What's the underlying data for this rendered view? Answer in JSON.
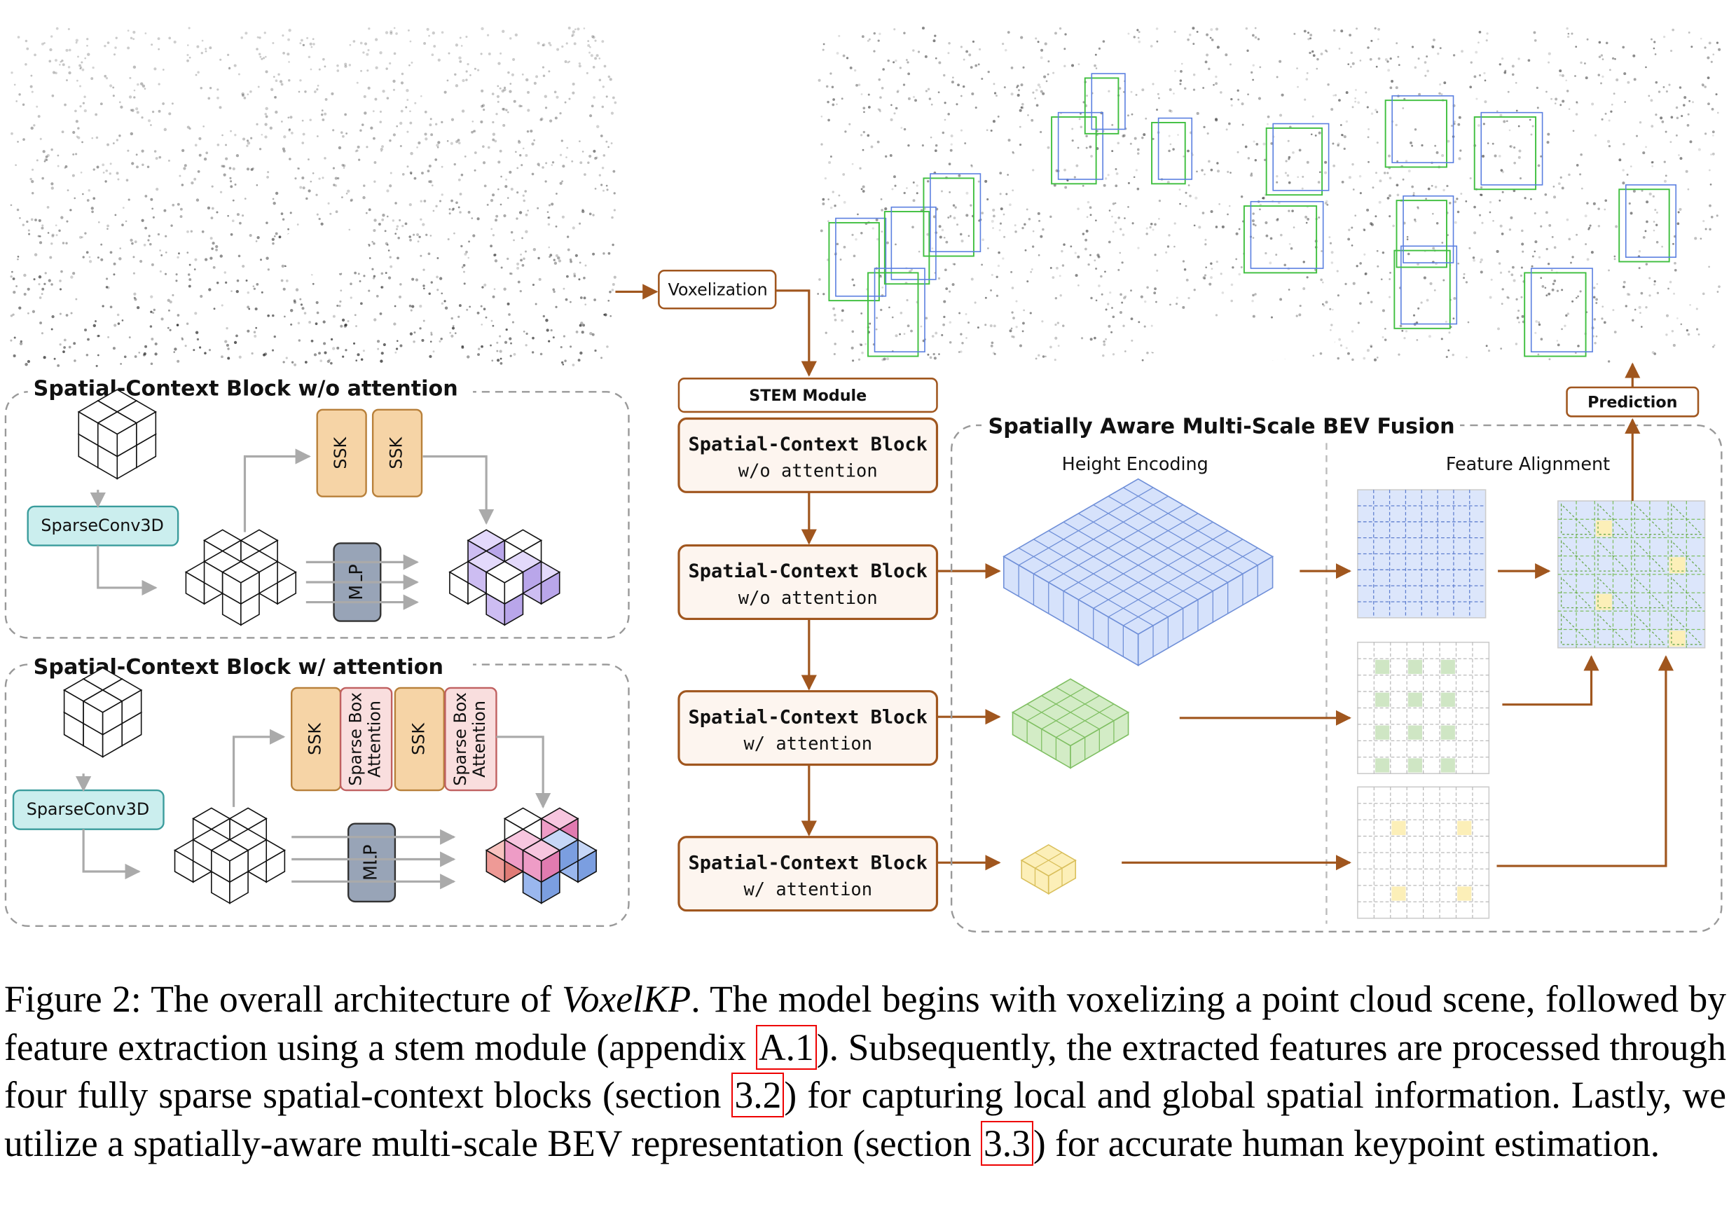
{
  "figure": {
    "voxelization": "Voxelization",
    "stem": "STEM Module",
    "blocks": [
      {
        "title": "Spatial-Context Block",
        "subtitle": "w/o attention"
      },
      {
        "title": "Spatial-Context Block",
        "subtitle": "w/o attention"
      },
      {
        "title": "Spatial-Context Block",
        "subtitle": "w/ attention"
      },
      {
        "title": "Spatial-Context Block",
        "subtitle": "w/ attention"
      }
    ],
    "fusion": {
      "title": "Spatially Aware Multi-Scale BEV Fusion",
      "height_encoding": "Height Encoding",
      "feature_alignment": "Feature Alignment",
      "prediction": "Prediction"
    },
    "left_top": {
      "title": "Spatial-Context Block w/o attention",
      "sparseconv": "SparseConv3D",
      "ops": [
        [
          "SSK"
        ],
        [
          "SSK"
        ]
      ],
      "mlp": "MLP"
    },
    "left_bottom": {
      "title": "Spatial-Context Block w/ attention",
      "sparseconv": "SparseConv3D",
      "ops": [
        [
          "SSK"
        ],
        [
          "Sparse Box",
          "Attention"
        ],
        [
          "SSK"
        ],
        [
          "Sparse Box",
          "Attention"
        ]
      ],
      "mlp": "MLP"
    }
  },
  "caption": [
    {
      "text": "Figure 2: The overall architecture of "
    },
    {
      "text": "VoxelKP",
      "style": "italic"
    },
    {
      "text": ". The model begins with voxelizing a point cloud scene, followed by feature extraction using a stem module (appendix "
    },
    {
      "text": "A.1",
      "style": "ref"
    },
    {
      "text": "). Subsequently, the extracted features are processed through four fully sparse spatial-context blocks (section "
    },
    {
      "text": "3.2",
      "style": "ref"
    },
    {
      "text": ") for capturing local and global spatial information. Lastly, we utilize a spatially-aware multi-scale BEV representation (section "
    },
    {
      "text": "3.3",
      "style": "ref"
    },
    {
      "text": ") for accurate human keypoint estimation."
    }
  ]
}
